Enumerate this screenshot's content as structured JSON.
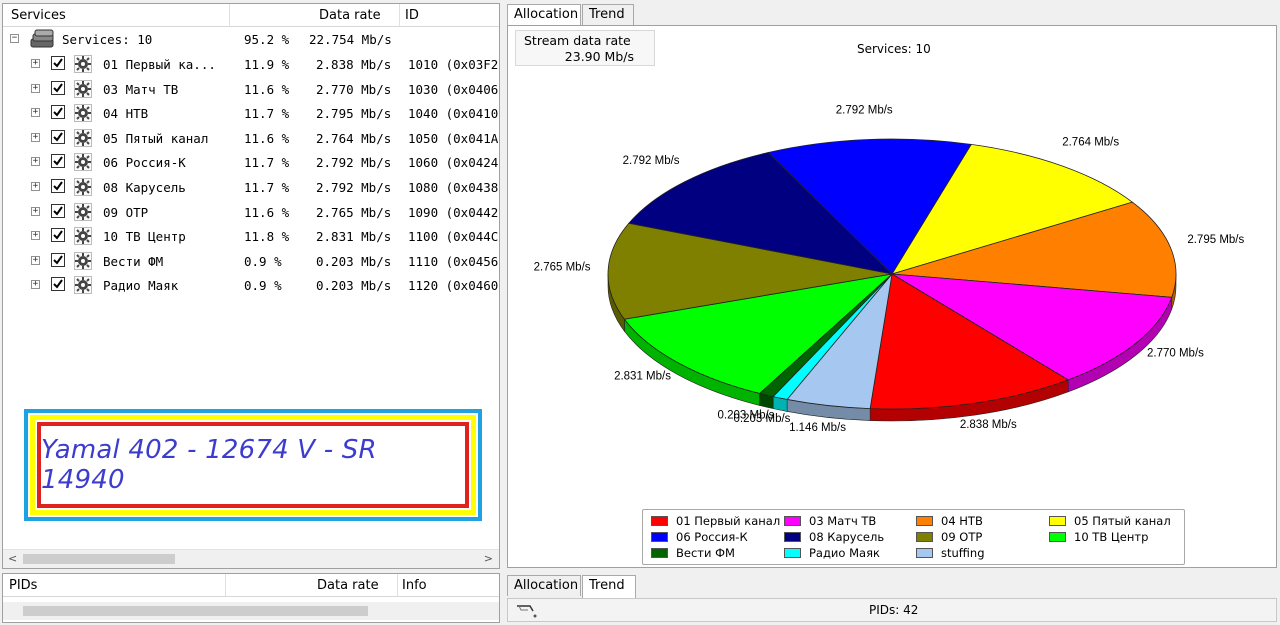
{
  "services_panel": {
    "columns": {
      "name": "Services",
      "rate": "Data rate",
      "id": "ID"
    },
    "root": {
      "label": "Services: 10",
      "percent": "95.2 %",
      "rate": "22.754 Mb/s"
    },
    "rows": [
      {
        "name": "01 Первый ка...",
        "percent": "11.9 %",
        "rate": "2.838 Mb/s",
        "id": "1010 (0x03F2"
      },
      {
        "name": "03 Матч ТВ",
        "percent": "11.6 %",
        "rate": "2.770 Mb/s",
        "id": "1030 (0x0406"
      },
      {
        "name": "04 НТВ",
        "percent": "11.7 %",
        "rate": "2.795 Mb/s",
        "id": "1040 (0x0410"
      },
      {
        "name": "05 Пятый канал",
        "percent": "11.6 %",
        "rate": "2.764 Mb/s",
        "id": "1050 (0x041A"
      },
      {
        "name": "06 Россия-К",
        "percent": "11.7 %",
        "rate": "2.792 Mb/s",
        "id": "1060 (0x0424"
      },
      {
        "name": "08 Карусель",
        "percent": "11.7 %",
        "rate": "2.792 Mb/s",
        "id": "1080 (0x0438"
      },
      {
        "name": "09 ОТР",
        "percent": "11.6 %",
        "rate": "2.765 Mb/s",
        "id": "1090 (0x0442"
      },
      {
        "name": "10 ТВ Центр",
        "percent": "11.8 %",
        "rate": "2.831 Mb/s",
        "id": "1100 (0x044C"
      },
      {
        "name": "Вести ФМ",
        "percent": "0.9 %",
        "rate": "0.203 Mb/s",
        "id": "1110 (0x0456"
      },
      {
        "name": "Радио Маяк",
        "percent": "0.9 %",
        "rate": "0.203 Mb/s",
        "id": "1120 (0x0460"
      }
    ],
    "expander_collapsed": "+",
    "expander_expanded": "−",
    "scroll_left": "<",
    "scroll_right": ">"
  },
  "watermark": {
    "text": "Yamal 402 - 12674 V - SR 14940"
  },
  "top_tabs": {
    "allocation": "Allocation",
    "trend": "Trend"
  },
  "allocation": {
    "stream_label": "Stream data rate",
    "stream_value": "23.90 Mb/s",
    "services_count": "Services: 10"
  },
  "chart_data": {
    "type": "pie",
    "title": "Services: 10",
    "slices": [
      {
        "name": "05 Пятый канал",
        "value": 2.764,
        "label": "2.764 Mb/s",
        "color": "#ffff00"
      },
      {
        "name": "04 НТВ",
        "value": 2.795,
        "label": "2.795 Mb/s",
        "color": "#ff8000"
      },
      {
        "name": "03 Матч ТВ",
        "value": 2.77,
        "label": "2.770 Mb/s",
        "color": "#ff00ff"
      },
      {
        "name": "01 Первый канал",
        "value": 2.838,
        "label": "2.838 Mb/s",
        "color": "#ff0000"
      },
      {
        "name": "stuffing",
        "value": 1.146,
        "label": "1.146 Mb/s",
        "color": "#a6c8f0"
      },
      {
        "name": "Радио Маяк",
        "value": 0.203,
        "label": "0.203 Mb/s",
        "color": "#00ffff"
      },
      {
        "name": "Вести ФМ",
        "value": 0.203,
        "label": "0.203 Mb/s",
        "color": "#006400"
      },
      {
        "name": "10 ТВ Центр",
        "value": 2.831,
        "label": "2.831 Mb/s",
        "color": "#00ff00"
      },
      {
        "name": "09 ОТР",
        "value": 2.765,
        "label": "2.765 Mb/s",
        "color": "#808000"
      },
      {
        "name": "08 Карусель",
        "value": 2.792,
        "label": "2.792 Mb/s",
        "color": "#000080"
      },
      {
        "name": "06 Россия-К",
        "value": 2.792,
        "label": "2.792 Mb/s",
        "color": "#0000ff"
      }
    ],
    "legend_placement": "bottom",
    "legend": [
      {
        "name": "01 Первый канал",
        "color": "#ff0000"
      },
      {
        "name": "03 Матч ТВ",
        "color": "#ff00ff"
      },
      {
        "name": "04 НТВ",
        "color": "#ff8000"
      },
      {
        "name": "05 Пятый канал",
        "color": "#ffff00"
      },
      {
        "name": "06 Россия-К",
        "color": "#0000ff"
      },
      {
        "name": "08 Карусель",
        "color": "#000080"
      },
      {
        "name": "09 ОТР",
        "color": "#808000"
      },
      {
        "name": "10 ТВ Центр",
        "color": "#00ff00"
      },
      {
        "name": "Вести ФМ",
        "color": "#006400"
      },
      {
        "name": "Радио Маяк",
        "color": "#00ffff"
      },
      {
        "name": "stuffing",
        "color": "#a6c8f0"
      }
    ]
  },
  "pids_panel": {
    "columns": {
      "name": "PIDs",
      "rate": "Data rate",
      "info": "Info"
    }
  },
  "bottom_tabs": {
    "allocation": "Allocation",
    "trend": "Trend"
  },
  "status": {
    "pids": "PIDs: 42"
  }
}
